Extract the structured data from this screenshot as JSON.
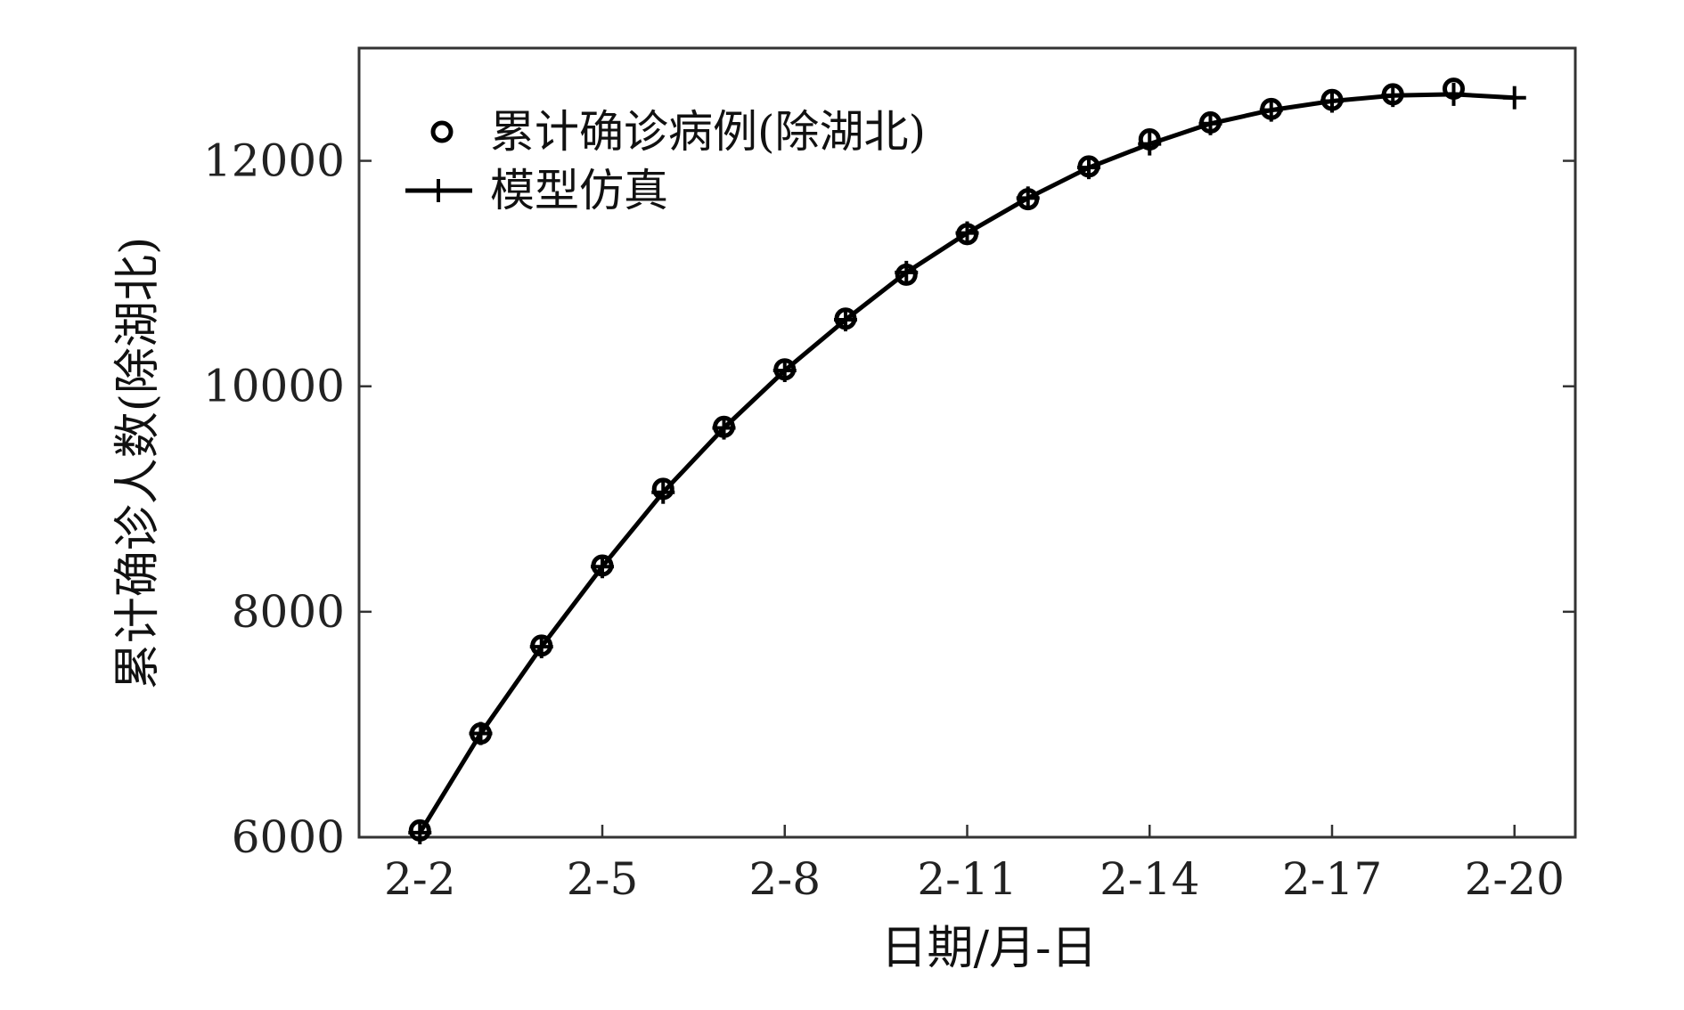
{
  "chart_data": {
    "type": "line",
    "xlabel": "日期/月-日",
    "ylabel": "累计确诊人数(除湖北)",
    "xlim": [
      "2-1",
      "2-21"
    ],
    "ylim": [
      6000,
      13000
    ],
    "x_ticks": [
      "2-2",
      "2-5",
      "2-8",
      "2-11",
      "2-14",
      "2-17",
      "2-20"
    ],
    "y_ticks": [
      6000,
      8000,
      10000,
      12000
    ],
    "grid": false,
    "legend_position": "top-left",
    "colors": {
      "line": "#000000",
      "marker": "#000000",
      "axis": "#333333"
    },
    "series": [
      {
        "name": "累计确诊病例(除湖北)",
        "style": "markers",
        "marker": "circle",
        "x": [
          "2-2",
          "2-3",
          "2-4",
          "2-5",
          "2-6",
          "2-7",
          "2-8",
          "2-9",
          "2-10",
          "2-11",
          "2-12",
          "2-13",
          "2-14",
          "2-15",
          "2-16",
          "2-17",
          "2-18",
          "2-19"
        ],
        "values": [
          6060,
          6920,
          7700,
          8410,
          9090,
          9640,
          10150,
          10600,
          10990,
          11350,
          11660,
          11950,
          12190,
          12340,
          12460,
          12540,
          12590,
          12640
        ]
      },
      {
        "name": "模型仿真",
        "style": "line+markers",
        "marker": "plus",
        "x": [
          "2-2",
          "2-3",
          "2-4",
          "2-5",
          "2-6",
          "2-7",
          "2-8",
          "2-9",
          "2-10",
          "2-11",
          "2-12",
          "2-13",
          "2-14",
          "2-15",
          "2-16",
          "2-17",
          "2-18",
          "2-19",
          "2-20"
        ],
        "values": [
          6040,
          6920,
          7690,
          8400,
          9060,
          9630,
          10140,
          10590,
          11010,
          11360,
          11670,
          11940,
          12150,
          12330,
          12450,
          12530,
          12580,
          12590,
          12560
        ]
      }
    ]
  }
}
